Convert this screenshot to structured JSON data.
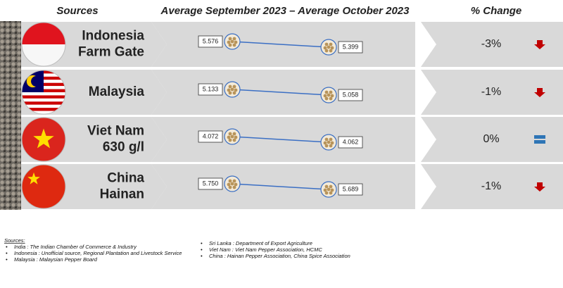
{
  "header": {
    "sources": "Sources",
    "period": "Average September 2023 – Average October 2023",
    "change": "% Change"
  },
  "rows": [
    {
      "name": [
        "Indonesia",
        "Farm Gate"
      ],
      "flag": "indonesia",
      "sept": "5.576",
      "oct": "5.399",
      "change": "-3%",
      "trend": "down"
    },
    {
      "name": [
        "Malaysia"
      ],
      "flag": "malaysia",
      "sept": "5.133",
      "oct": "5.058",
      "change": "-1%",
      "trend": "down"
    },
    {
      "name": [
        "Viet Nam",
        "630 g/l"
      ],
      "flag": "vietnam",
      "sept": "4.072",
      "oct": "4.062",
      "change": "0%",
      "trend": "flat"
    },
    {
      "name": [
        "China",
        "Hainan"
      ],
      "flag": "china",
      "sept": "5.750",
      "oct": "5.689",
      "change": "-1%",
      "trend": "down"
    }
  ],
  "footer": {
    "title": "Sources:",
    "left": [
      "India : The Indian Chamber of Commerce & Industry",
      "Indonesia : Unofficial source, Regional Plantation and Livestock Service",
      "Malaysia : Malaysian Pepper Board"
    ],
    "right": [
      "Sri Lanka : Department of Export Agriculture",
      "Viet Nam : Viet Nam Pepper Association, HCMC",
      "China : Hainan Pepper Association, China Spice Association"
    ]
  }
}
